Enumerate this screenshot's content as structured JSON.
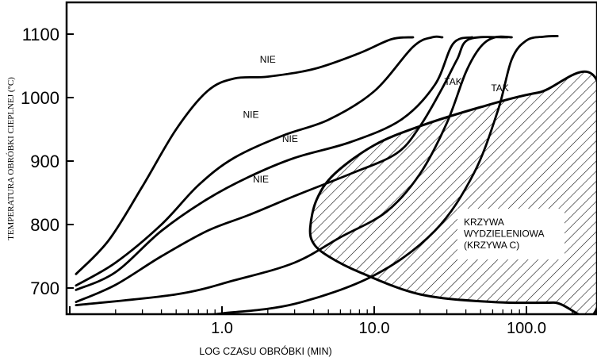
{
  "chart_data": {
    "type": "line",
    "xlabel": "LOG CZASU OBRÓBKI (MIN)",
    "ylabel": "TEMPERATURA OBRÓBKI CIEPLNEJ (°C)",
    "x_scale": "log",
    "xlim": [
      0.1,
      300
    ],
    "ylim": [
      655,
      1150
    ],
    "x_ticks": [
      1,
      10,
      100
    ],
    "x_tick_labels": [
      "1.0",
      "10.0",
      "100.0"
    ],
    "y_ticks": [
      700,
      800,
      900,
      1000,
      1100
    ],
    "y_tick_labels": [
      "700",
      "800",
      "900",
      "1000",
      "1100"
    ],
    "grid": false,
    "series": [
      {
        "points": [
          [
            0.11,
            722
          ],
          [
            0.18,
            775
          ],
          [
            0.3,
            860
          ],
          [
            0.5,
            950
          ],
          [
            0.8,
            1010
          ],
          [
            1.2,
            1030
          ],
          [
            2.0,
            1033
          ],
          [
            4.0,
            1045
          ],
          [
            8.0,
            1070
          ],
          [
            13.0,
            1092
          ],
          [
            18.0,
            1095
          ]
        ]
      },
      {
        "points": [
          [
            0.11,
            704
          ],
          [
            0.2,
            740
          ],
          [
            0.4,
            800
          ],
          [
            0.7,
            862
          ],
          [
            1.2,
            905
          ],
          [
            2.5,
            940
          ],
          [
            5.0,
            965
          ],
          [
            10.0,
            1010
          ],
          [
            18.0,
            1080
          ],
          [
            24.0,
            1095
          ],
          [
            28.0,
            1095
          ]
        ]
      },
      {
        "points": [
          [
            0.11,
            697
          ],
          [
            0.2,
            725
          ],
          [
            0.4,
            790
          ],
          [
            0.8,
            840
          ],
          [
            1.5,
            875
          ],
          [
            3.0,
            905
          ],
          [
            7.0,
            930
          ],
          [
            15.0,
            965
          ],
          [
            25.0,
            1020
          ],
          [
            33.0,
            1085
          ],
          [
            44.0,
            1095
          ]
        ]
      },
      {
        "points": [
          [
            0.11,
            678
          ],
          [
            0.2,
            705
          ],
          [
            0.4,
            750
          ],
          [
            0.8,
            790
          ],
          [
            1.5,
            815
          ],
          [
            3.0,
            845
          ],
          [
            7.0,
            880
          ],
          [
            14.0,
            912
          ],
          [
            20.0,
            955
          ],
          [
            28.0,
            1015
          ],
          [
            35.0,
            1060
          ],
          [
            42.0,
            1092
          ],
          [
            75.0,
            1095
          ]
        ]
      },
      {
        "points": [
          [
            0.11,
            673
          ],
          [
            0.5,
            690
          ],
          [
            1.2,
            712
          ],
          [
            3.0,
            740
          ],
          [
            6.0,
            780
          ],
          [
            12.0,
            820
          ],
          [
            20.0,
            880
          ],
          [
            30.0,
            960
          ],
          [
            40.0,
            1040
          ],
          [
            50.0,
            1080
          ],
          [
            62.0,
            1095
          ],
          [
            80.0,
            1095
          ]
        ]
      },
      {
        "points": [
          [
            0.6,
            655
          ],
          [
            1.0,
            660
          ],
          [
            3.0,
            675
          ],
          [
            10.0,
            720
          ],
          [
            25.0,
            790
          ],
          [
            45.0,
            880
          ],
          [
            65.0,
            980
          ],
          [
            80.0,
            1060
          ],
          [
            100.0,
            1090
          ],
          [
            130.0,
            1096
          ],
          [
            160.0,
            1097
          ]
        ]
      }
    ],
    "region": {
      "name": "KRZYWA WYDZIELENIOWA (KRZYWA C)",
      "boundary": [
        [
          3.8,
          795
        ],
        [
          4.2,
          840
        ],
        [
          5.5,
          880
        ],
        [
          10.0,
          925
        ],
        [
          20.0,
          955
        ],
        [
          50.0,
          985
        ],
        [
          120.0,
          1008
        ],
        [
          300.0,
          1018
        ],
        [
          300.0,
          680
        ],
        [
          150.0,
          677
        ],
        [
          60.0,
          678
        ],
        [
          20.0,
          690
        ],
        [
          8.0,
          725
        ],
        [
          5.0,
          750
        ],
        [
          4.0,
          770
        ]
      ]
    },
    "annotations": [
      {
        "text": "NIE",
        "x": 2.0,
        "y": 1055
      },
      {
        "text": "NIE",
        "x": 1.55,
        "y": 968
      },
      {
        "text": "NIE",
        "x": 2.8,
        "y": 930
      },
      {
        "text": "NIE",
        "x": 1.8,
        "y": 866
      },
      {
        "text": "TAK",
        "x": 33.0,
        "y": 1020
      },
      {
        "text": "TAK",
        "x": 67.0,
        "y": 1010
      }
    ],
    "region_label": [
      "KRZYWA",
      "WYDZIELENIOWA",
      "(KRZYWA C)"
    ]
  }
}
